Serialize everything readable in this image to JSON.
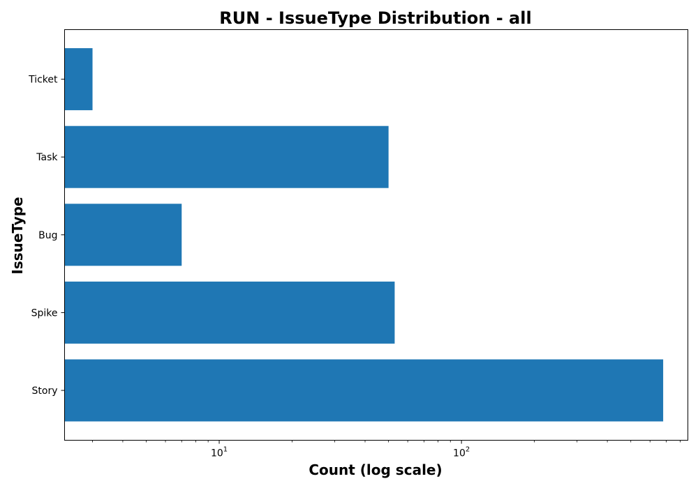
{
  "chart_data": {
    "type": "bar",
    "orientation": "horizontal",
    "title": "RUN - IssueType Distribution - all",
    "xlabel": "Count (log scale)",
    "ylabel": "IssueType",
    "xscale": "log",
    "xlim": [
      2.3,
      860
    ],
    "categories": [
      "Story",
      "Spike",
      "Bug",
      "Task",
      "Ticket"
    ],
    "values": [
      680,
      53,
      7,
      50,
      3
    ],
    "x_ticks": [
      {
        "value": 10,
        "base": "10",
        "exp": "1"
      },
      {
        "value": 100,
        "base": "10",
        "exp": "2"
      }
    ],
    "bar_color": "#1f77b4",
    "grid": false,
    "legend": "none"
  }
}
